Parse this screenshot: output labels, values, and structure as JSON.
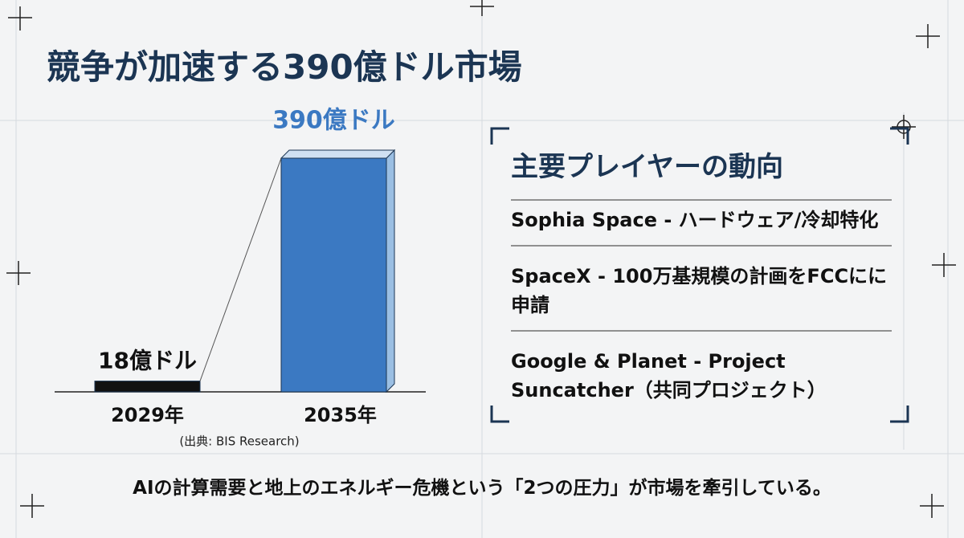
{
  "title": "競争が加速する390億ドル市場",
  "chart_data": {
    "type": "bar",
    "categories": [
      "2029年",
      "2035年"
    ],
    "values": [
      18,
      390
    ],
    "value_labels": [
      "18億ドル",
      "390億ドル"
    ],
    "colors": [
      "#111111",
      "#3b79c2"
    ],
    "label_colors": [
      "#111111",
      "#3b79c2"
    ],
    "source": "(出典: BIS Research)"
  },
  "panel": {
    "heading": "主要プレイヤーの動向",
    "items": [
      "Sophia Space - ハードウェア/冷却特化",
      "SpaceX - 100万基規模の計画をFCCにに申請",
      "Google & Planet - Project Suncatcher（共同プロジェクト）"
    ]
  },
  "footer": "AIの計算需要と地上のエネルギー危機という「2つの圧力」が市場を牽引している。"
}
